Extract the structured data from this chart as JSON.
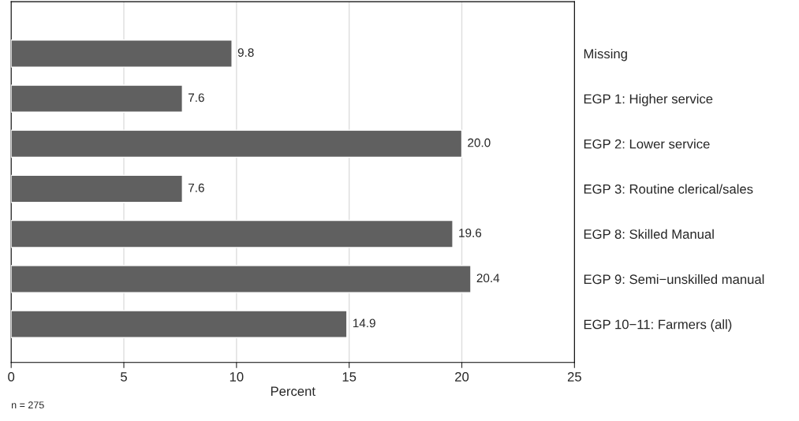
{
  "chart_data": {
    "type": "bar",
    "orientation": "horizontal",
    "xlabel": "Percent",
    "categories": [
      "Missing",
      "EGP 1: Higher service",
      "EGP 2: Lower service",
      "EGP 3: Routine clerical/sales",
      "EGP 8: Skilled Manual",
      "EGP 9: Semi−unskilled manual",
      "EGP 10−11: Farmers (all)"
    ],
    "values": [
      9.8,
      7.6,
      20.0,
      7.6,
      19.6,
      20.4,
      14.9
    ],
    "value_labels": [
      "9.8",
      "7.6",
      "20.0",
      "7.6",
      "19.6",
      "20.4",
      "14.9"
    ],
    "color": "#606060",
    "xlim": [
      0,
      25
    ],
    "xticks": [
      0,
      5,
      10,
      15,
      20,
      25
    ],
    "grid": "x",
    "annotations": [
      "n = 275"
    ]
  }
}
